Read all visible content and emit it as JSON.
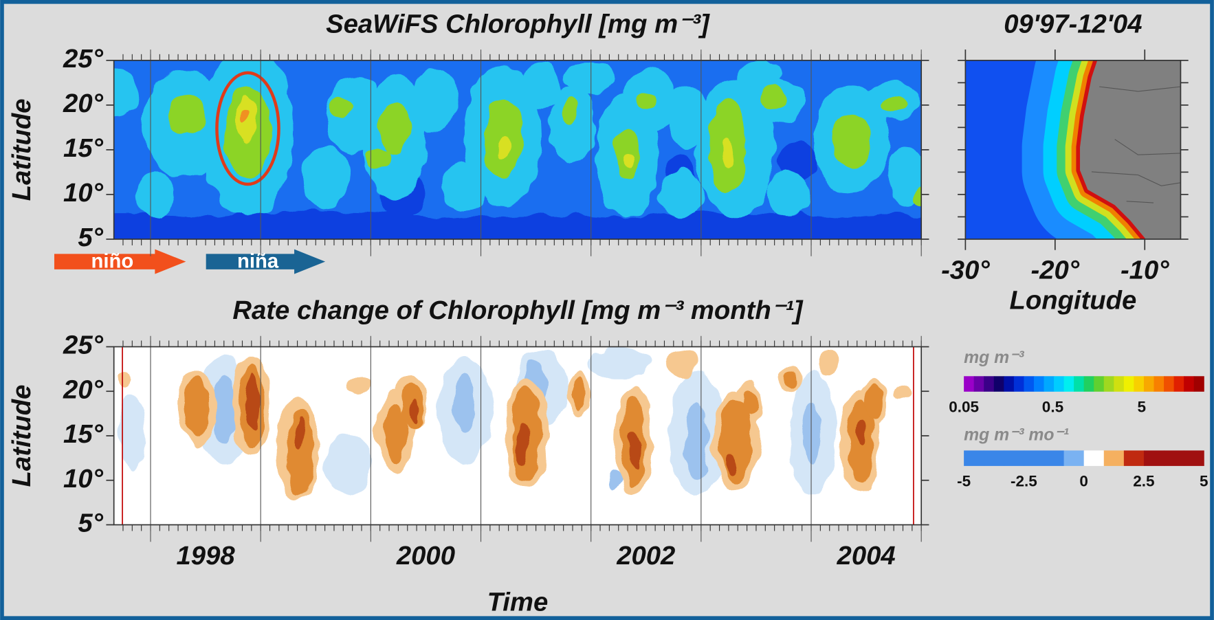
{
  "chart_data": [
    {
      "type": "heatmap",
      "title": "SeaWiFS Chlorophyll [mg m⁻³]",
      "y_label": "Latitude",
      "xlim": [
        1997.667,
        2005
      ],
      "ylim": [
        5,
        25
      ],
      "yticks": [
        {
          "value": 5,
          "label": "5°"
        },
        {
          "value": 10,
          "label": "10°"
        },
        {
          "value": 15,
          "label": "15°"
        },
        {
          "value": 20,
          "label": "20°"
        },
        {
          "value": 25,
          "label": "25°"
        }
      ],
      "annotations": [
        "niño",
        "niña"
      ]
    },
    {
      "type": "heatmap",
      "title": "09'97-12'04",
      "x_label": "Longitude",
      "xlim": [
        -30,
        -6
      ],
      "ylim": [
        5,
        25
      ],
      "xticks": [
        {
          "value": -30,
          "label": "-30°"
        },
        {
          "value": -20,
          "label": "-20°"
        },
        {
          "value": -10,
          "label": "-10°"
        }
      ]
    },
    {
      "type": "heatmap",
      "title": "Rate change of Chlorophyll [mg m⁻³ month⁻¹]",
      "x_label": "Time",
      "y_label": "Latitude",
      "xlim": [
        1997.667,
        2005
      ],
      "ylim": [
        5,
        25
      ],
      "xticks": [
        1998,
        2000,
        2002,
        2004
      ],
      "yticks": [
        {
          "value": 5,
          "label": "5°"
        },
        {
          "value": 10,
          "label": "10°"
        },
        {
          "value": 15,
          "label": "15°"
        },
        {
          "value": 20,
          "label": "20°"
        },
        {
          "value": 25,
          "label": "25°"
        }
      ]
    }
  ],
  "colorbars": [
    {
      "label": "mg m⁻³",
      "log_scale": true,
      "lim": [
        0.05,
        25
      ],
      "ticks": [
        0.05,
        0.5,
        5
      ],
      "colors": [
        "#9a00c8",
        "#6a00a8",
        "#3a0088",
        "#10006a",
        "#0010a8",
        "#0030d8",
        "#0058f0",
        "#0080ff",
        "#00a8ff",
        "#00ccff",
        "#00eef0",
        "#00e0a8",
        "#20d060",
        "#60d030",
        "#a0d820",
        "#d0e010",
        "#f0f000",
        "#f8d000",
        "#f8a800",
        "#f88000",
        "#f05000",
        "#e02000",
        "#c00000",
        "#a00000"
      ]
    },
    {
      "label": "mg m⁻³ mo⁻¹",
      "log_scale": false,
      "lim": [
        -5,
        5
      ],
      "ticks": [
        -5,
        -2.5,
        0,
        2.5,
        5
      ],
      "colors": [
        "#3a86e8",
        "#3a86e8",
        "#3a86e8",
        "#3a86e8",
        "#3a86e8",
        "#7ab2f2",
        "#ffffff",
        "#f5b060",
        "#c02a10",
        "#a01010",
        "#a01010",
        "#a01010"
      ]
    }
  ]
}
